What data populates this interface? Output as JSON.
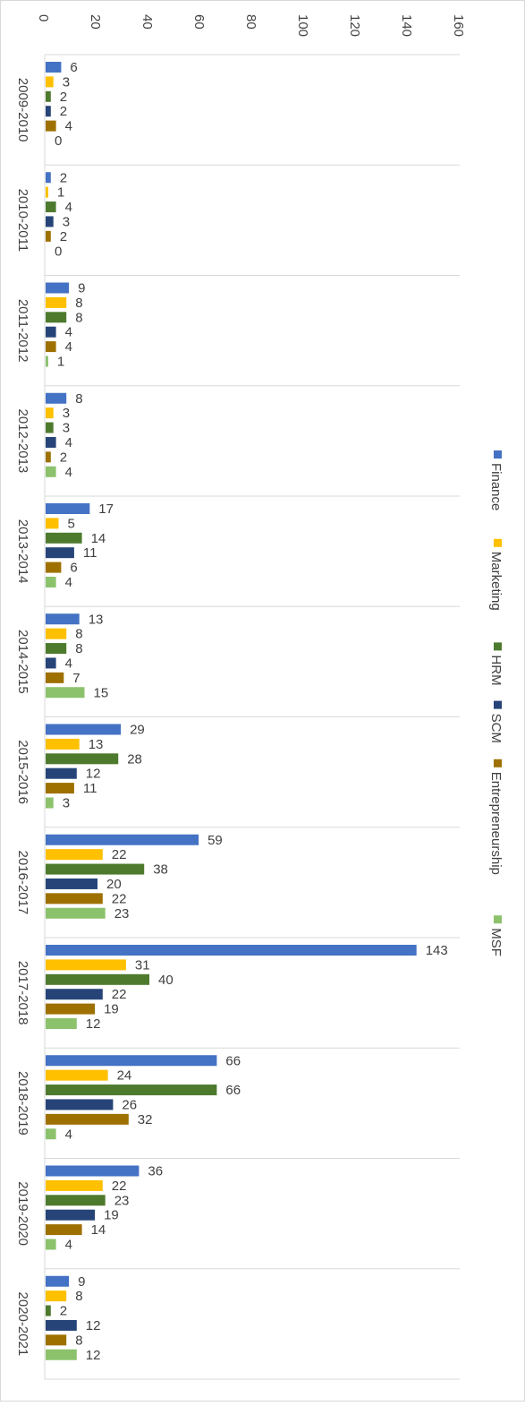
{
  "chart_data": {
    "type": "bar",
    "orientation": "horizontal",
    "categories": [
      "2009-2010",
      "2010-2011",
      "2011-2012",
      "2012-2013",
      "2013-2014",
      "2014-2015",
      "2015-2016",
      "2016-2017",
      "2017-2018",
      "2018-2019",
      "2019-2020",
      "2020-2021"
    ],
    "series": [
      {
        "name": "Finance",
        "color": "#4472C4",
        "values": [
          6,
          2,
          9,
          8,
          17,
          13,
          29,
          59,
          143,
          66,
          36,
          9
        ]
      },
      {
        "name": "Marketing",
        "color": "#FFC000",
        "values": [
          3,
          1,
          8,
          3,
          5,
          8,
          13,
          22,
          31,
          24,
          22,
          8
        ]
      },
      {
        "name": "HRM",
        "color": "#4E7A2E",
        "values": [
          2,
          4,
          8,
          3,
          14,
          8,
          28,
          38,
          40,
          66,
          23,
          2
        ]
      },
      {
        "name": "SCM",
        "color": "#264478",
        "values": [
          2,
          3,
          4,
          4,
          11,
          4,
          12,
          20,
          22,
          26,
          19,
          12
        ]
      },
      {
        "name": "Entrepreneurship",
        "color": "#9E7000",
        "values": [
          4,
          2,
          4,
          2,
          6,
          7,
          11,
          22,
          19,
          32,
          14,
          8
        ]
      },
      {
        "name": "MSF",
        "color": "#8CC26C",
        "values": [
          0,
          0,
          1,
          4,
          4,
          15,
          3,
          23,
          12,
          4,
          4,
          12
        ]
      }
    ],
    "ticks": [
      "0",
      "20",
      "40",
      "60",
      "80",
      "100",
      "120",
      "140",
      "160"
    ],
    "xlim": [
      0,
      160
    ],
    "data_labels": true,
    "legend_position": "right",
    "grid": "category separators"
  }
}
